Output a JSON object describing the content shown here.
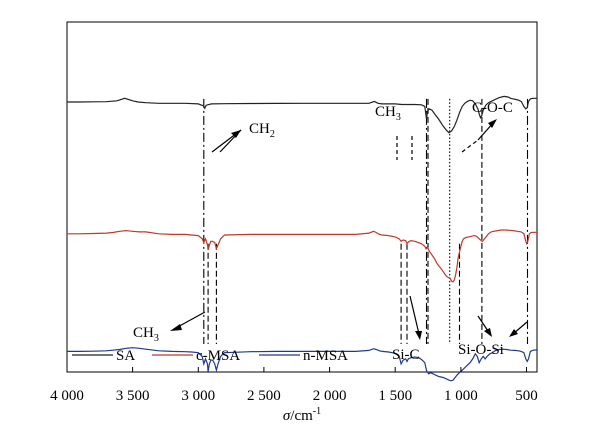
{
  "chart_data": {
    "type": "line",
    "x_axis": {
      "label_symbol": "σ",
      "label_unit": "/cm",
      "label_exp": "-1",
      "range": [
        4000,
        420
      ],
      "reversed": true,
      "ticks": [
        {
          "value": 4000,
          "label": "4 000"
        },
        {
          "value": 3500,
          "label": "3 500"
        },
        {
          "value": 3000,
          "label": "3 000"
        },
        {
          "value": 2500,
          "label": "2 500"
        },
        {
          "value": 2000,
          "label": "2 000"
        },
        {
          "value": 1500,
          "label": "1 500"
        },
        {
          "value": 1000,
          "label": "1 000"
        },
        {
          "value": 500,
          "label": "500"
        }
      ]
    },
    "y_axis": {
      "label": "",
      "range": [
        0,
        1
      ],
      "ticks": []
    },
    "grid": false,
    "legend": {
      "position": "bottom-left"
    },
    "series": [
      {
        "name": "SA",
        "color": "#222222",
        "baseline": 0.92,
        "x": [
          4000,
          3900,
          3800,
          3700,
          3620,
          3560,
          3500,
          3460,
          3400,
          3300,
          3200,
          3100,
          3000,
          2960,
          2950,
          2940,
          2900,
          2800,
          2600,
          2400,
          2200,
          2000,
          1900,
          1800,
          1700,
          1660,
          1630,
          1600,
          1500,
          1450,
          1400,
          1350,
          1300,
          1275,
          1262,
          1255,
          1240,
          1220,
          1200,
          1170,
          1140,
          1110,
          1090,
          1070,
          1050,
          1030,
          1010,
          990,
          970,
          950,
          930,
          910,
          890,
          870,
          860,
          850,
          840,
          830,
          810,
          790,
          770,
          750,
          730,
          710,
          690,
          670,
          640,
          620,
          600,
          580,
          560,
          540,
          520,
          505,
          495,
          485,
          470,
          450,
          420
        ],
        "y": [
          0.915,
          0.915,
          0.917,
          0.918,
          0.925,
          0.945,
          0.925,
          0.915,
          0.91,
          0.905,
          0.905,
          0.905,
          0.9,
          0.885,
          0.865,
          0.89,
          0.9,
          0.902,
          0.903,
          0.904,
          0.905,
          0.905,
          0.905,
          0.905,
          0.905,
          0.92,
          0.905,
          0.9,
          0.9,
          0.895,
          0.895,
          0.895,
          0.893,
          0.88,
          0.78,
          0.84,
          0.86,
          0.85,
          0.82,
          0.78,
          0.73,
          0.69,
          0.67,
          0.685,
          0.72,
          0.77,
          0.83,
          0.88,
          0.905,
          0.92,
          0.93,
          0.925,
          0.9,
          0.86,
          0.82,
          0.79,
          0.81,
          0.85,
          0.89,
          0.91,
          0.92,
          0.93,
          0.94,
          0.95,
          0.955,
          0.96,
          0.955,
          0.945,
          0.94,
          0.935,
          0.93,
          0.92,
          0.88,
          0.86,
          0.87,
          0.92,
          0.94,
          0.945,
          0.945
        ]
      },
      {
        "name": "c-MSA",
        "color": "#c0392b",
        "baseline": 0.56,
        "x": [
          4000,
          3900,
          3800,
          3700,
          3650,
          3600,
          3550,
          3500,
          3450,
          3400,
          3300,
          3200,
          3100,
          3050,
          3000,
          2970,
          2958,
          2945,
          2930,
          2925,
          2915,
          2905,
          2890,
          2875,
          2862,
          2850,
          2830,
          2800,
          2600,
          2400,
          2200,
          2000,
          1900,
          1800,
          1700,
          1665,
          1645,
          1620,
          1600,
          1550,
          1500,
          1470,
          1455,
          1440,
          1420,
          1410,
          1400,
          1380,
          1350,
          1300,
          1275,
          1265,
          1255,
          1240,
          1220,
          1200,
          1180,
          1150,
          1130,
          1110,
          1095,
          1080,
          1070,
          1060,
          1050,
          1040,
          1030,
          1020,
          1000,
          990,
          980,
          960,
          940,
          920,
          900,
          880,
          860,
          845,
          835,
          820,
          800,
          790,
          770,
          750,
          720,
          690,
          660,
          630,
          600,
          570,
          540,
          520,
          505,
          498,
          490,
          478,
          465,
          440,
          420
        ],
        "y": [
          0.56,
          0.56,
          0.562,
          0.565,
          0.57,
          0.58,
          0.585,
          0.58,
          0.575,
          0.575,
          0.56,
          0.555,
          0.555,
          0.55,
          0.545,
          0.52,
          0.49,
          0.52,
          0.47,
          0.43,
          0.47,
          0.5,
          0.5,
          0.49,
          0.44,
          0.47,
          0.52,
          0.55,
          0.555,
          0.555,
          0.555,
          0.555,
          0.555,
          0.555,
          0.565,
          0.58,
          0.57,
          0.555,
          0.55,
          0.545,
          0.535,
          0.52,
          0.5,
          0.51,
          0.505,
          0.48,
          0.495,
          0.505,
          0.5,
          0.48,
          0.46,
          0.44,
          0.455,
          0.42,
          0.39,
          0.36,
          0.32,
          0.28,
          0.25,
          0.22,
          0.21,
          0.2,
          0.18,
          0.175,
          0.19,
          0.23,
          0.29,
          0.37,
          0.46,
          0.5,
          0.52,
          0.53,
          0.535,
          0.54,
          0.545,
          0.54,
          0.52,
          0.505,
          0.5,
          0.52,
          0.545,
          0.56,
          0.575,
          0.58,
          0.585,
          0.59,
          0.59,
          0.588,
          0.585,
          0.58,
          0.575,
          0.56,
          0.5,
          0.48,
          0.5,
          0.56,
          0.57,
          0.572,
          0.572
        ]
      },
      {
        "name": "n-MSA",
        "color": "#1f3a8f",
        "baseline": 0.24,
        "x": [
          4000,
          3900,
          3800,
          3700,
          3650,
          3600,
          3550,
          3500,
          3450,
          3400,
          3300,
          3200,
          3100,
          3050,
          3000,
          2970,
          2958,
          2945,
          2930,
          2925,
          2915,
          2905,
          2890,
          2875,
          2862,
          2850,
          2830,
          2800,
          2600,
          2400,
          2200,
          2000,
          1900,
          1800,
          1700,
          1665,
          1645,
          1620,
          1600,
          1550,
          1500,
          1470,
          1455,
          1440,
          1420,
          1410,
          1400,
          1380,
          1350,
          1320,
          1300,
          1275,
          1260,
          1245,
          1230,
          1210,
          1190,
          1170,
          1150,
          1130,
          1110,
          1090,
          1075,
          1060,
          1045,
          1030,
          1010,
          990,
          970,
          950,
          930,
          910,
          890,
          875,
          860,
          845,
          830,
          815,
          800,
          780,
          760,
          740,
          710,
          680,
          650,
          620,
          590,
          560,
          540,
          520,
          505,
          495,
          485,
          470,
          450,
          420
        ],
        "y": [
          0.24,
          0.24,
          0.242,
          0.245,
          0.25,
          0.255,
          0.265,
          0.27,
          0.265,
          0.258,
          0.245,
          0.24,
          0.238,
          0.235,
          0.23,
          0.2,
          0.14,
          0.18,
          0.14,
          0.08,
          0.14,
          0.17,
          0.17,
          0.14,
          0.09,
          0.14,
          0.2,
          0.23,
          0.238,
          0.24,
          0.24,
          0.24,
          0.24,
          0.24,
          0.248,
          0.262,
          0.255,
          0.245,
          0.24,
          0.235,
          0.225,
          0.2,
          0.14,
          0.17,
          0.18,
          0.16,
          0.18,
          0.19,
          0.195,
          0.19,
          0.175,
          0.15,
          0.08,
          0.06,
          0.07,
          0.06,
          0.05,
          0.04,
          0.035,
          0.03,
          0.02,
          0.01,
          0.005,
          0.01,
          0.03,
          0.05,
          0.07,
          0.09,
          0.11,
          0.13,
          0.15,
          0.18,
          0.22,
          0.2,
          0.15,
          0.18,
          0.2,
          0.18,
          0.2,
          0.22,
          0.23,
          0.245,
          0.255,
          0.258,
          0.255,
          0.25,
          0.248,
          0.245,
          0.24,
          0.23,
          0.18,
          0.16,
          0.18,
          0.24,
          0.25,
          0.252
        ]
      }
    ],
    "reference_lines": [
      {
        "x": 2958,
        "style": "dashdot",
        "from": "top",
        "to": "bottom"
      },
      {
        "x": 2925,
        "style": "dashed",
        "from": "c-MSA",
        "to": "bottom"
      },
      {
        "x": 2862,
        "style": "dashed",
        "from": "c-MSA",
        "to": "bottom"
      },
      {
        "x": 1455,
        "style": "dashed",
        "from": "c-MSA",
        "to": "bottom"
      },
      {
        "x": 1410,
        "style": "dashed",
        "from": "c-MSA",
        "to": "bottom"
      },
      {
        "x": 1262,
        "style": "dashdot",
        "from": "top",
        "to": "bottom"
      },
      {
        "x": 1250,
        "style": "dashed",
        "from": "top",
        "to": "bottom"
      },
      {
        "x": 1085,
        "style": "dotted",
        "from": "top",
        "to": "bottom"
      },
      {
        "x": 1010,
        "style": "dashed",
        "from": "c-MSA",
        "to": "bottom"
      },
      {
        "x": 840,
        "style": "dashed",
        "from": "top",
        "to": "bottom"
      },
      {
        "x": 492,
        "style": "dashdot",
        "from": "top",
        "to": "bottom"
      }
    ],
    "annotations": [
      {
        "id": "ch2",
        "text": "CH",
        "sub": "2"
      },
      {
        "id": "ch3-top",
        "text": "CH",
        "sub": "3"
      },
      {
        "id": "ch3-bottom",
        "text": "CH",
        "sub": "3"
      },
      {
        "id": "coc",
        "text": "C-O-C"
      },
      {
        "id": "sic",
        "text": "Si-C"
      },
      {
        "id": "siosi",
        "text": "Si-O-Si"
      }
    ]
  }
}
